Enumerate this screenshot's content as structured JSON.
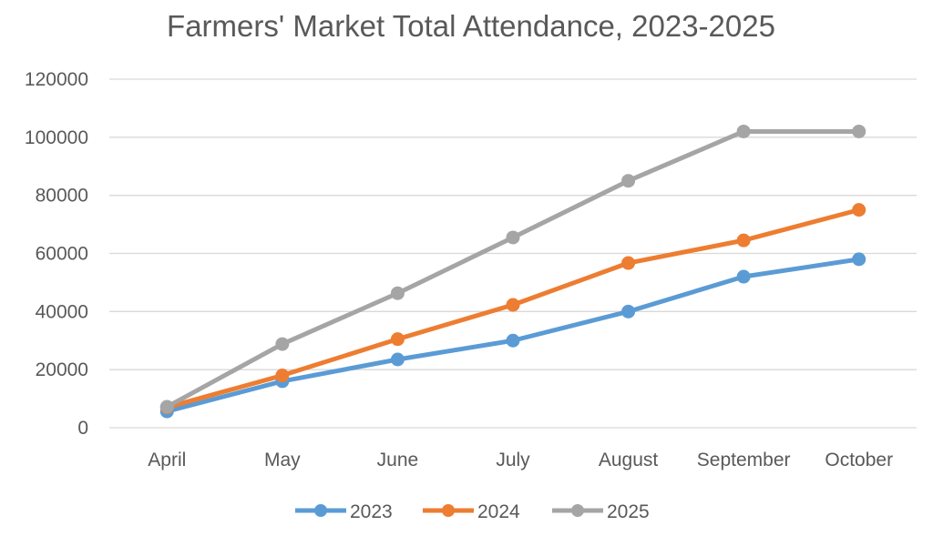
{
  "chart_data": {
    "type": "line",
    "title": "Farmers' Market Total Attendance, 2023-2025",
    "xlabel": "",
    "ylabel": "",
    "categories": [
      "April",
      "May",
      "June",
      "July",
      "August",
      "September",
      "October"
    ],
    "ylim": [
      0,
      120000
    ],
    "yticks": [
      "0",
      "20000",
      "40000",
      "60000",
      "80000",
      "100000",
      "120000"
    ],
    "grid": true,
    "legend_position": "bottom",
    "series": [
      {
        "name": "2023",
        "color": "#5b9bd5",
        "values": [
          5600,
          16000,
          23500,
          30000,
          40000,
          52000,
          58000
        ]
      },
      {
        "name": "2024",
        "color": "#ed7d31",
        "values": [
          7000,
          18000,
          30500,
          42300,
          56700,
          64500,
          75000
        ]
      },
      {
        "name": "2025",
        "color": "#a5a5a5",
        "values": [
          7200,
          28800,
          46300,
          65500,
          85000,
          102000,
          102000
        ]
      }
    ]
  }
}
